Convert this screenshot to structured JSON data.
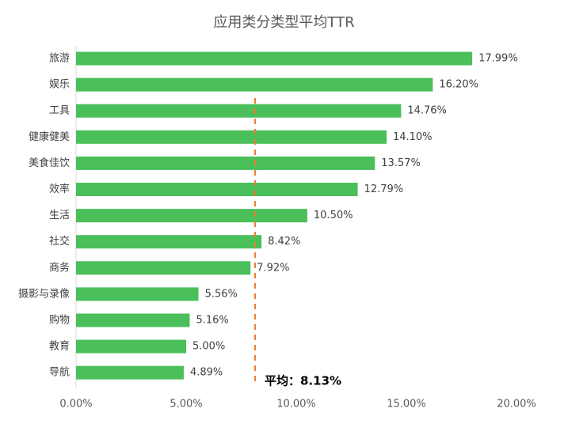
{
  "chart_data": {
    "type": "bar",
    "orientation": "horizontal",
    "title": "应用类分类型平均TTR",
    "categories": [
      "旅游",
      "娱乐",
      "工具",
      "健康健美",
      "美食佳饮",
      "效率",
      "生活",
      "社交",
      "商务",
      "摄影与录像",
      "购物",
      "教育",
      "导航"
    ],
    "values": [
      17.99,
      16.2,
      14.76,
      14.1,
      13.57,
      12.79,
      10.5,
      8.42,
      7.92,
      5.56,
      5.16,
      5.0,
      4.89
    ],
    "value_labels": [
      "17.99%",
      "16.20%",
      "14.76%",
      "14.10%",
      "13.57%",
      "12.79%",
      "10.50%",
      "8.42%",
      "7.92%",
      "5.56%",
      "5.16%",
      "5.00%",
      "4.89%"
    ],
    "xlim": [
      0,
      20
    ],
    "xticks": [
      0,
      5,
      10,
      15,
      20
    ],
    "xtick_labels": [
      "0.00%",
      "5.00%",
      "10.00%",
      "15.00%",
      "20.00%"
    ],
    "xlabel": "",
    "ylabel": "",
    "grid": false,
    "legend": "none",
    "average": {
      "value": 8.13,
      "label": "平均：8.13%",
      "line_style": "dashed",
      "color": "#ED7D31"
    },
    "bar_color": "#4ABF5A",
    "text_color": "#404040",
    "title_color": "#595959"
  }
}
